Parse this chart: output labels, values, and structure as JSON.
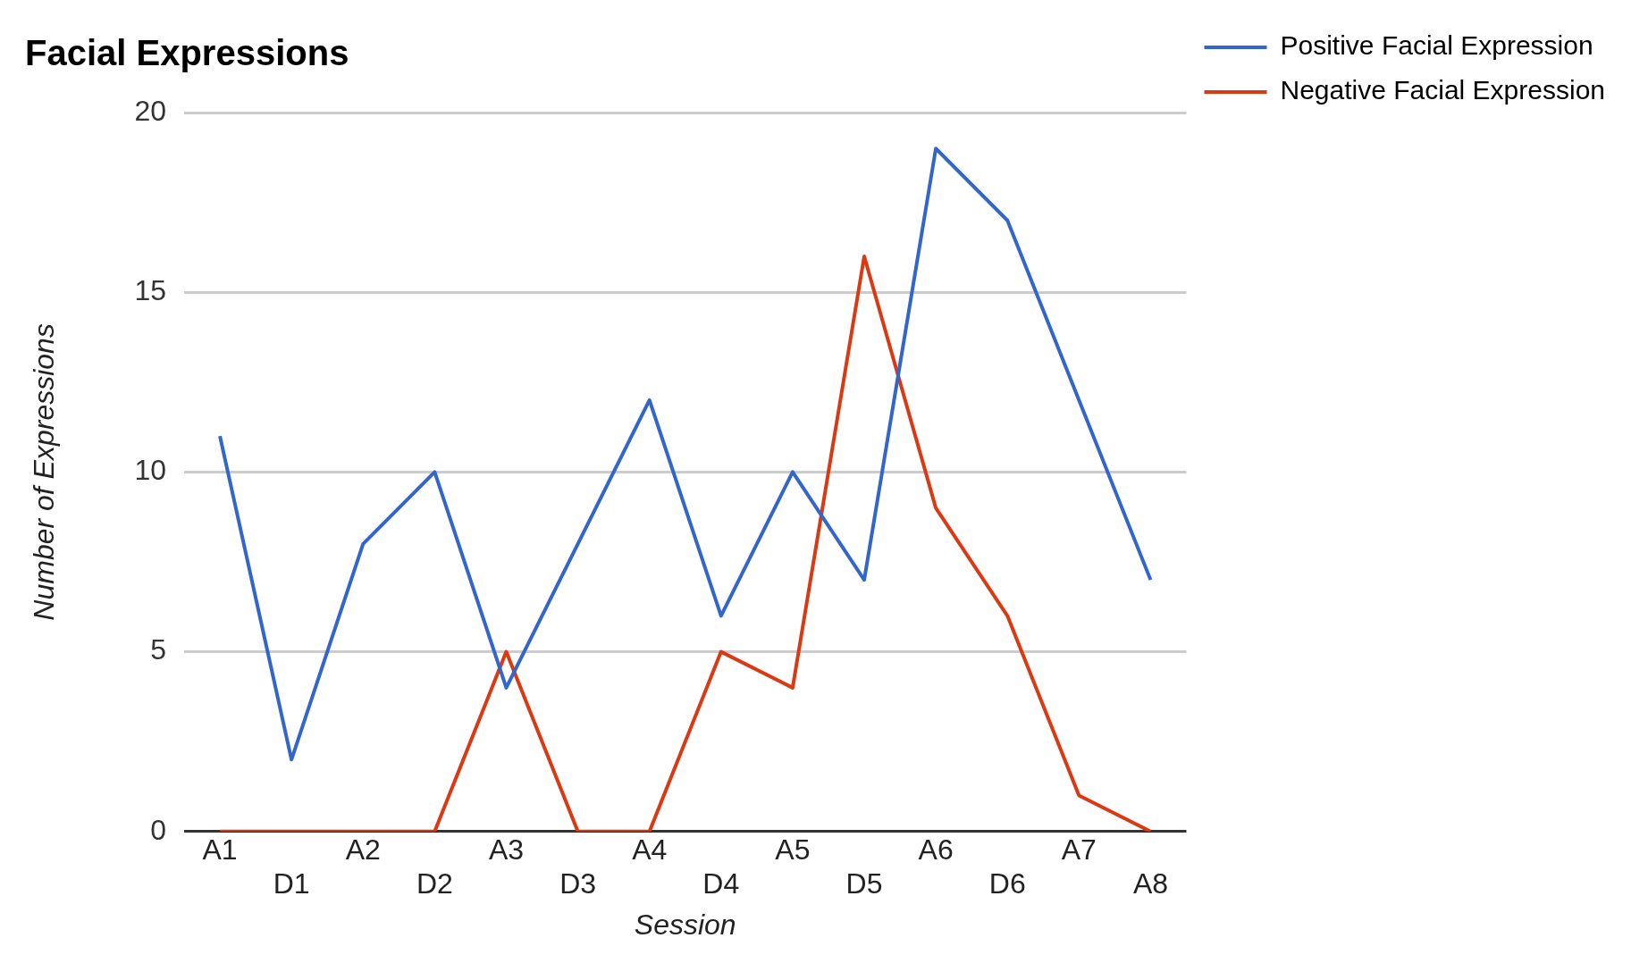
{
  "chart_data": {
    "type": "line",
    "title": "Facial Expressions",
    "xlabel": "Session",
    "ylabel": "Number of Expressions",
    "categories": [
      "A1",
      "D1",
      "A2",
      "D2",
      "A3",
      "D3",
      "A4",
      "D4",
      "A5",
      "D5",
      "A6",
      "D6",
      "A7",
      "A8"
    ],
    "series": [
      {
        "name": "Positive Facial Expression",
        "color": "#3366cc",
        "values": [
          11,
          2,
          8,
          10,
          4,
          8,
          12,
          6,
          10,
          7,
          19,
          17,
          12,
          7
        ]
      },
      {
        "name": "Negative Facial Expression",
        "color": "#dc3912",
        "values": [
          0,
          0,
          0,
          0,
          5,
          0,
          0,
          5,
          4,
          16,
          9,
          6,
          1,
          0
        ]
      }
    ],
    "ylim": [
      0,
      20
    ],
    "yticks": [
      0,
      5,
      10,
      15,
      20
    ],
    "grid": "y",
    "legend": "right",
    "marker": "none",
    "line_style": "solid"
  }
}
